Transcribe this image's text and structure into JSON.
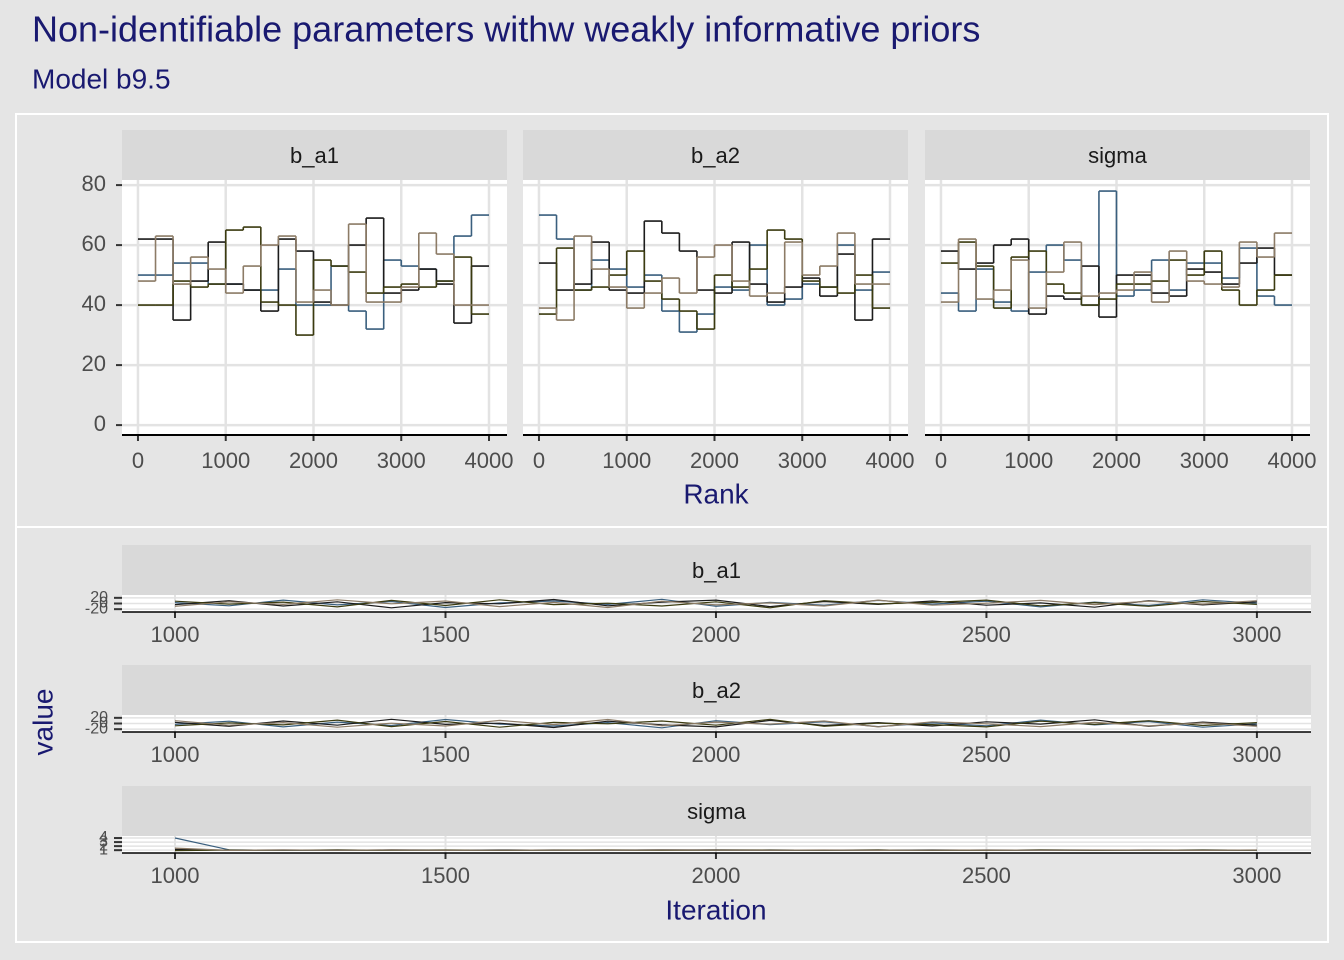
{
  "title": "Non-identifiable parameters withw weakly informative priors",
  "subtitle": "Model b9.5",
  "chart_data": [
    {
      "type": "step",
      "x_label": "Rank",
      "grid": true,
      "xlim": [
        -182,
        4205
      ],
      "xticks": [
        0,
        1000,
        2000,
        3000,
        4000
      ],
      "ylim": [
        -3.3,
        81.7
      ],
      "yticks": [
        0,
        20,
        40,
        60,
        80
      ],
      "bins": [
        0,
        200,
        400,
        600,
        800,
        1000,
        1200,
        1400,
        1600,
        1800,
        2000,
        2200,
        2400,
        2600,
        2800,
        3000,
        3200,
        3400,
        3600,
        3800,
        4000
      ],
      "facets": [
        {
          "name": "b_a1",
          "series": [
            {
              "color": "#3a5f7e",
              "values": [
                50,
                50,
                54,
                54,
                47,
                47,
                45,
                45,
                52,
                40,
                40,
                53,
                38,
                32,
                55,
                53,
                52,
                48,
                63,
                70
              ]
            },
            {
              "color": "#1c1c1c",
              "values": [
                62,
                62,
                35,
                48,
                61,
                47,
                45,
                38,
                62,
                58,
                41,
                40,
                60,
                69,
                44,
                45,
                52,
                47,
                34,
                53
              ]
            },
            {
              "color": "#3b3b10",
              "values": [
                40,
                40,
                48,
                46,
                47,
                65,
                66,
                41,
                40,
                30,
                55,
                53,
                51,
                44,
                46,
                47,
                46,
                48,
                56,
                37
              ]
            },
            {
              "color": "#8c7b66",
              "values": [
                48,
                63,
                47,
                56,
                52,
                44,
                53,
                60,
                63,
                41,
                45,
                40,
                67,
                41,
                41,
                46,
                64,
                57,
                40,
                40
              ]
            }
          ]
        },
        {
          "name": "b_a2",
          "series": [
            {
              "color": "#3a5f7e",
              "values": [
                70,
                62,
                45,
                55,
                52,
                46,
                50,
                38,
                31,
                37,
                46,
                45,
                60,
                40,
                42,
                47,
                46,
                60,
                45,
                51
              ]
            },
            {
              "color": "#1c1c1c",
              "values": [
                54,
                45,
                47,
                61,
                45,
                44,
                68,
                64,
                58,
                45,
                44,
                61,
                47,
                41,
                46,
                49,
                43,
                57,
                35,
                62
              ]
            },
            {
              "color": "#3b3b10",
              "values": [
                37,
                59,
                45,
                46,
                50,
                58,
                48,
                42,
                38,
                32,
                50,
                46,
                52,
                65,
                62,
                48,
                46,
                44,
                50,
                39
              ]
            },
            {
              "color": "#8c7b66",
              "values": [
                39,
                35,
                63,
                52,
                46,
                39,
                44,
                49,
                44,
                56,
                60,
                48,
                43,
                44,
                61,
                50,
                53,
                64,
                47,
                47
              ]
            }
          ]
        },
        {
          "name": "sigma",
          "series": [
            {
              "color": "#3a5f7e",
              "values": [
                44,
                38,
                52,
                41,
                38,
                51,
                60,
                55,
                40,
                78,
                43,
                45,
                55,
                45,
                54,
                54,
                49,
                59,
                43,
                40
              ]
            },
            {
              "color": "#1c1c1c",
              "values": [
                58,
                52,
                54,
                60,
                62,
                37,
                43,
                42,
                53,
                36,
                50,
                50,
                44,
                43,
                52,
                51,
                47,
                54,
                59,
                50
              ]
            },
            {
              "color": "#3b3b10",
              "values": [
                54,
                61,
                53,
                39,
                56,
                58,
                47,
                44,
                40,
                42,
                47,
                47,
                48,
                55,
                50,
                58,
                45,
                40,
                45,
                50
              ]
            },
            {
              "color": "#8c7b66",
              "values": [
                41,
                62,
                42,
                45,
                55,
                39,
                51,
                61,
                43,
                44,
                45,
                51,
                41,
                58,
                48,
                47,
                46,
                61,
                56,
                64
              ]
            }
          ]
        }
      ]
    },
    {
      "type": "line",
      "x_label": "Iteration",
      "y_label": "value",
      "xlim": [
        902,
        3100
      ],
      "xticks": [
        1000,
        1500,
        2000,
        2500,
        3000
      ],
      "x": [
        1000,
        1100,
        1200,
        1300,
        1400,
        1500,
        1600,
        1700,
        1800,
        1900,
        2000,
        2100,
        2200,
        2300,
        2400,
        2500,
        2600,
        2700,
        2800,
        2900,
        3000
      ],
      "facets": [
        {
          "name": "b_a1",
          "ylim": [
            -30,
            30
          ],
          "yticks": [
            -20,
            0,
            20
          ],
          "series": [
            {
              "color": "#3a5f7e",
              "values": [
                3,
                -8,
                12,
                -5,
                7,
                -14,
                2,
                9,
                -3,
                15,
                -10,
                4,
                -6,
                11,
                -2,
                8,
                -12,
                5,
                -7,
                13,
                1
              ]
            },
            {
              "color": "#1c1c1c",
              "values": [
                -4,
                10,
                -9,
                6,
                -15,
                3,
                -1,
                14,
                -8,
                5,
                12,
                -11,
                7,
                -3,
                9,
                -6,
                2,
                -13,
                10,
                -5,
                6
              ]
            },
            {
              "color": "#3b3b10",
              "values": [
                8,
                -2,
                5,
                -12,
                11,
                -7,
                13,
                -4,
                1,
                -9,
                6,
                -15,
                10,
                -1,
                4,
                12,
                -8,
                3,
                -10,
                7,
                -3
              ]
            },
            {
              "color": "#8c7b66",
              "values": [
                -10,
                6,
                -3,
                13,
                -1,
                9,
                -11,
                4,
                -14,
                8,
                -5,
                2,
                -9,
                12,
                -6,
                1,
                11,
                -4,
                8,
                -2,
                10
              ]
            }
          ]
        },
        {
          "name": "b_a2",
          "ylim": [
            -30,
            30
          ],
          "yticks": [
            -20,
            0,
            20
          ],
          "series": [
            {
              "color": "#3a5f7e",
              "values": [
                -3,
                8,
                -12,
                5,
                -7,
                14,
                -2,
                -9,
                3,
                -15,
                10,
                -4,
                6,
                -11,
                2,
                -8,
                12,
                -5,
                7,
                -13,
                -1
              ]
            },
            {
              "color": "#1c1c1c",
              "values": [
                4,
                -10,
                9,
                -6,
                15,
                -3,
                1,
                -14,
                8,
                -5,
                -12,
                11,
                -7,
                3,
                -9,
                6,
                -2,
                13,
                -10,
                5,
                -6
              ]
            },
            {
              "color": "#3b3b10",
              "values": [
                -8,
                2,
                -5,
                12,
                -11,
                7,
                -13,
                4,
                -1,
                9,
                -6,
                15,
                -10,
                1,
                -4,
                -12,
                8,
                -3,
                10,
                -7,
                3
              ]
            },
            {
              "color": "#8c7b66",
              "values": [
                10,
                -6,
                3,
                -13,
                1,
                -9,
                11,
                -4,
                14,
                -8,
                5,
                -2,
                9,
                -12,
                6,
                -1,
                -11,
                4,
                -8,
                2,
                -10
              ]
            }
          ]
        },
        {
          "name": "sigma",
          "ylim": [
            0.3,
            4.5
          ],
          "yticks": [
            1,
            2,
            3,
            4
          ],
          "series": [
            {
              "color": "#3a5f7e",
              "values": [
                4,
                1.1,
                0.95,
                1.05,
                1.0,
                0.98,
                1.08,
                0.97,
                1.02,
                1.1,
                0.96,
                1.03,
                1.0,
                0.99,
                1.06,
                0.97,
                1.04,
                1.01,
                0.98,
                1.05,
                1.0
              ]
            },
            {
              "color": "#1c1c1c",
              "values": [
                1.2,
                1.0,
                1.04,
                0.97,
                1.06,
                1.01,
                0.96,
                1.05,
                0.99,
                1.03,
                1.07,
                0.98,
                1.02,
                1.04,
                0.97,
                1.05,
                1.0,
                0.96,
                1.03,
                0.99,
                1.02
              ]
            },
            {
              "color": "#3b3b10",
              "values": [
                0.9,
                1.03,
                0.98,
                1.06,
                0.96,
                1.04,
                1.0,
                1.02,
                1.07,
                0.97,
                1.01,
                1.05,
                0.98,
                1.03,
                1.0,
                0.96,
                1.06,
                1.02,
                0.99,
                1.04,
                0.98
              ]
            },
            {
              "color": "#8c7b66",
              "values": [
                1.5,
                0.97,
                1.05,
                1.0,
                1.03,
                0.96,
                1.04,
                0.99,
                1.01,
                1.06,
                0.98,
                1.0,
                1.05,
                0.97,
                1.03,
                1.01,
                0.98,
                1.05,
                1.02,
                0.97,
                1.03
              ]
            }
          ]
        }
      ]
    }
  ]
}
